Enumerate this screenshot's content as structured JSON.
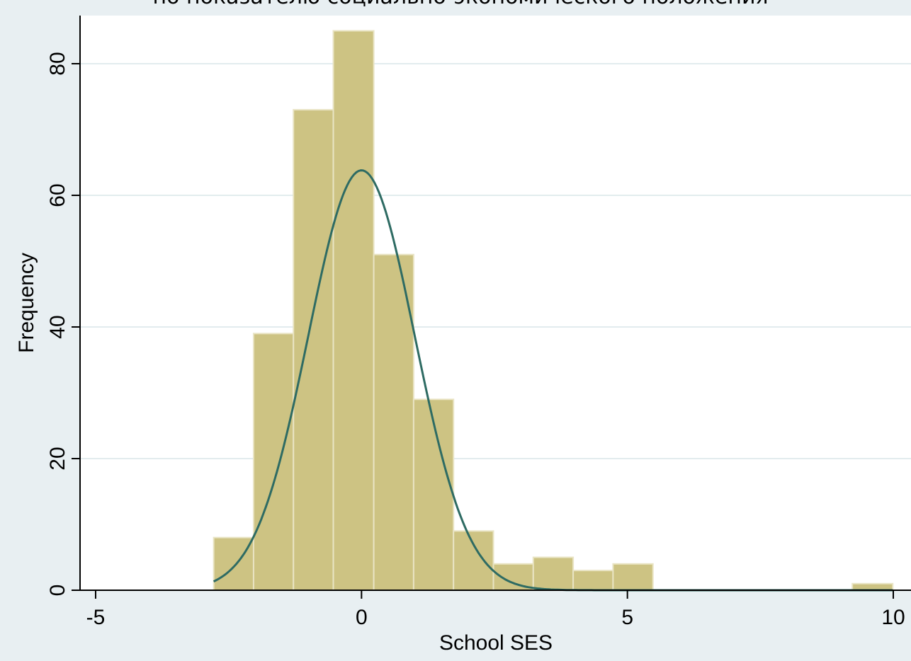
{
  "chart_data": {
    "type": "bar",
    "title": "по показателю социально-экономического положения",
    "xlabel": "School SES",
    "ylabel": "Frequency",
    "xlim": [
      -5.0,
      10.0
    ],
    "ylim": [
      0,
      85
    ],
    "x_ticks": [
      "-5",
      "0",
      "5",
      "10"
    ],
    "y_ticks": [
      "0",
      "20",
      "40",
      "60",
      "80"
    ],
    "grid": true,
    "legend": "none",
    "colors": {
      "bar_fill": "#cdc383",
      "bar_edge": "#e9e4c4",
      "curve": "#2e6b63",
      "background": "#e8eff2",
      "plot_area": "#ffffff",
      "grid": "#e2ecee"
    },
    "series": [
      {
        "bins": [
          {
            "x0": -2.78,
            "x1": -2.03,
            "count": 8
          },
          {
            "x0": -2.03,
            "x1": -1.28,
            "count": 39
          },
          {
            "x0": -1.28,
            "x1": -0.53,
            "count": 73
          },
          {
            "x0": -0.53,
            "x1": 0.23,
            "count": 85
          },
          {
            "x0": 0.23,
            "x1": 0.98,
            "count": 51
          },
          {
            "x0": 0.98,
            "x1": 1.73,
            "count": 29
          },
          {
            "x0": 1.73,
            "x1": 2.48,
            "count": 9
          },
          {
            "x0": 2.48,
            "x1": 3.23,
            "count": 4
          },
          {
            "x0": 3.23,
            "x1": 3.98,
            "count": 5
          },
          {
            "x0": 3.98,
            "x1": 4.73,
            "count": 3
          },
          {
            "x0": 4.73,
            "x1": 5.48,
            "count": 4
          },
          {
            "x0": 9.23,
            "x1": 9.99,
            "count": 1
          }
        ]
      },
      {
        "kind": "normal-density-curve",
        "mean": 0.0,
        "sd": 1.0,
        "peak": 63.8,
        "x_range": [
          -2.78,
          9.99
        ]
      }
    ]
  }
}
